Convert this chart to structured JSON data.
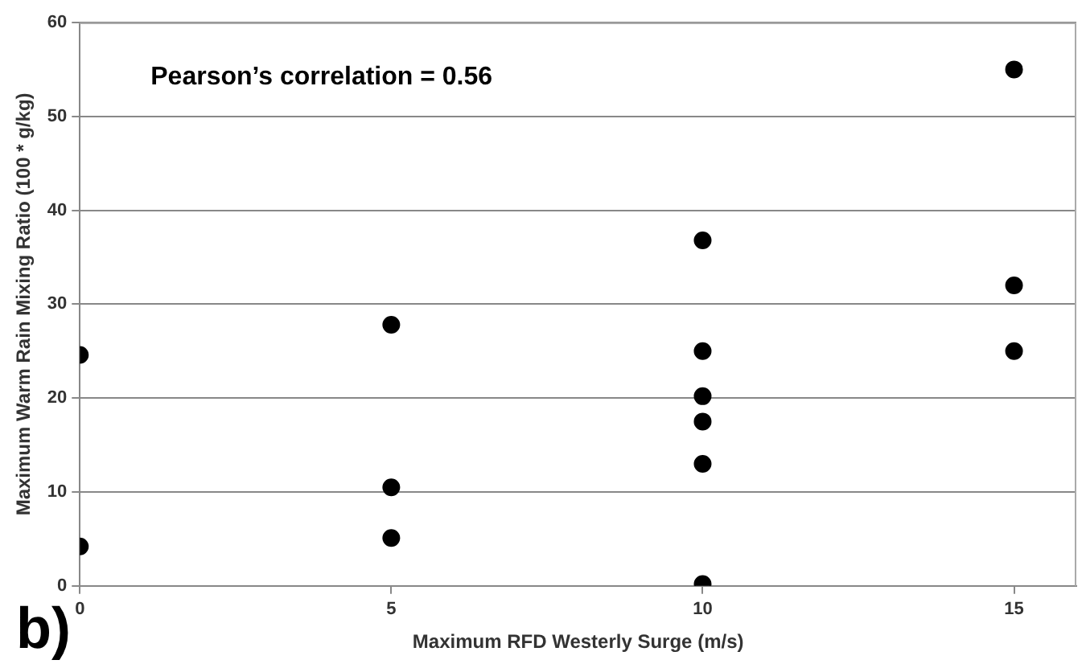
{
  "chart_data": {
    "type": "scatter",
    "xlabel": "Maximum RFD Westerly Surge (m/s)",
    "ylabel": "Maximum Warm Rain Mixing Ratio (100 * g/kg)",
    "annotations": [
      "Pearson’s correlation = 0.56",
      "b)"
    ],
    "x": [
      0,
      0,
      5,
      5,
      5,
      10,
      10,
      10,
      10,
      10,
      10,
      15,
      15,
      15
    ],
    "values": [
      24.6,
      4.2,
      27.8,
      10.5,
      5.1,
      36.8,
      25,
      20.2,
      17.5,
      13,
      0.2,
      55,
      32,
      25
    ],
    "color": "#000000",
    "marker": "circle",
    "xlim": [
      0,
      16
    ],
    "xticks": [
      0,
      5,
      10,
      15
    ],
    "ylim": [
      0,
      60
    ],
    "yticks": [
      0,
      10,
      20,
      30,
      40,
      50,
      60
    ],
    "grid": "y",
    "legend": false
  }
}
